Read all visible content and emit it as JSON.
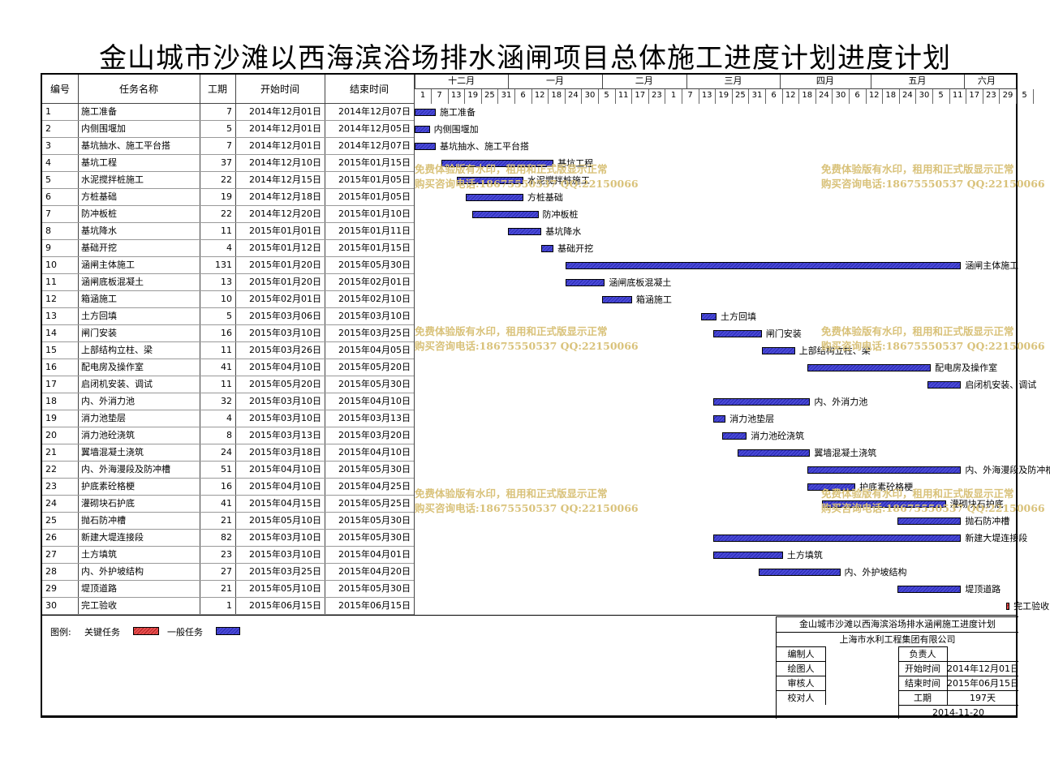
{
  "title": "金山城市沙滩以西海滨浴场排水涵闸项目总体施工进度计划进度计划",
  "headers": {
    "id": "编号",
    "name": "任务名称",
    "dur": "工期",
    "start": "开始时间",
    "end": "结束时间"
  },
  "months": [
    "十二月",
    "一月",
    "二月",
    "三月",
    "四月",
    "五月",
    "六月"
  ],
  "days": [
    "1",
    "7",
    "13",
    "19",
    "25",
    "31",
    "6",
    "12",
    "18",
    "24",
    "30",
    "5",
    "11",
    "17",
    "23",
    "1",
    "7",
    "13",
    "19",
    "25",
    "31",
    "6",
    "12",
    "18",
    "24",
    "30",
    "6",
    "12",
    "18",
    "24",
    "30",
    "5",
    "11",
    "17",
    "23",
    "29",
    "5"
  ],
  "tasks": [
    {
      "id": "1",
      "name": "施工准备",
      "dur": "7",
      "start": "2014年12月01日",
      "end": "2014年12月07日"
    },
    {
      "id": "2",
      "name": "内侧围堰加",
      "dur": "5",
      "start": "2014年12月01日",
      "end": "2014年12月05日"
    },
    {
      "id": "3",
      "name": "基坑抽水、施工平台搭",
      "dur": "7",
      "start": "2014年12月01日",
      "end": "2014年12月07日"
    },
    {
      "id": "4",
      "name": "基坑工程",
      "dur": "37",
      "start": "2014年12月10日",
      "end": "2015年01月15日"
    },
    {
      "id": "5",
      "name": "水泥搅拌桩施工",
      "dur": "22",
      "start": "2014年12月15日",
      "end": "2015年01月05日"
    },
    {
      "id": "6",
      "name": "方桩基础",
      "dur": "19",
      "start": "2014年12月18日",
      "end": "2015年01月05日"
    },
    {
      "id": "7",
      "name": "防冲板桩",
      "dur": "22",
      "start": "2014年12月20日",
      "end": "2015年01月10日"
    },
    {
      "id": "8",
      "name": "基坑降水",
      "dur": "11",
      "start": "2015年01月01日",
      "end": "2015年01月11日"
    },
    {
      "id": "9",
      "name": "基础开挖",
      "dur": "4",
      "start": "2015年01月12日",
      "end": "2015年01月15日"
    },
    {
      "id": "10",
      "name": "涵闸主体施工",
      "dur": "131",
      "start": "2015年01月20日",
      "end": "2015年05月30日"
    },
    {
      "id": "11",
      "name": "涵闸底板混凝土",
      "dur": "13",
      "start": "2015年01月20日",
      "end": "2015年02月01日"
    },
    {
      "id": "12",
      "name": "箱涵施工",
      "dur": "10",
      "start": "2015年02月01日",
      "end": "2015年02月10日"
    },
    {
      "id": "13",
      "name": "土方回填",
      "dur": "5",
      "start": "2015年03月06日",
      "end": "2015年03月10日"
    },
    {
      "id": "14",
      "name": "闸门安装",
      "dur": "16",
      "start": "2015年03月10日",
      "end": "2015年03月25日"
    },
    {
      "id": "15",
      "name": "上部结构立柱、梁",
      "dur": "11",
      "start": "2015年03月26日",
      "end": "2015年04月05日"
    },
    {
      "id": "16",
      "name": "配电房及操作室",
      "dur": "41",
      "start": "2015年04月10日",
      "end": "2015年05月20日"
    },
    {
      "id": "17",
      "name": "启闭机安装、调试",
      "dur": "11",
      "start": "2015年05月20日",
      "end": "2015年05月30日"
    },
    {
      "id": "18",
      "name": "内、外消力池",
      "dur": "32",
      "start": "2015年03月10日",
      "end": "2015年04月10日"
    },
    {
      "id": "19",
      "name": "消力池垫层",
      "dur": "4",
      "start": "2015年03月10日",
      "end": "2015年03月13日"
    },
    {
      "id": "20",
      "name": "消力池砼浇筑",
      "dur": "8",
      "start": "2015年03月13日",
      "end": "2015年03月20日"
    },
    {
      "id": "21",
      "name": "翼墙混凝土浇筑",
      "dur": "24",
      "start": "2015年03月18日",
      "end": "2015年04月10日"
    },
    {
      "id": "22",
      "name": "内、外海漫段及防冲槽",
      "dur": "51",
      "start": "2015年04月10日",
      "end": "2015年05月30日"
    },
    {
      "id": "23",
      "name": "护底素砼格梗",
      "dur": "16",
      "start": "2015年04月10日",
      "end": "2015年04月25日"
    },
    {
      "id": "24",
      "name": "灌砌块石护底",
      "dur": "41",
      "start": "2015年04月15日",
      "end": "2015年05月25日"
    },
    {
      "id": "25",
      "name": "抛石防冲槽",
      "dur": "21",
      "start": "2015年05月10日",
      "end": "2015年05月30日"
    },
    {
      "id": "26",
      "name": "新建大堤连接段",
      "dur": "82",
      "start": "2015年03月10日",
      "end": "2015年05月30日"
    },
    {
      "id": "27",
      "name": "土方填筑",
      "dur": "23",
      "start": "2015年03月10日",
      "end": "2015年04月01日"
    },
    {
      "id": "28",
      "name": "内、外护坡结构",
      "dur": "27",
      "start": "2015年03月25日",
      "end": "2015年04月20日"
    },
    {
      "id": "29",
      "name": "堤顶道路",
      "dur": "21",
      "start": "2015年05月10日",
      "end": "2015年05月30日"
    },
    {
      "id": "30",
      "name": "完工验收",
      "dur": "1",
      "start": "2015年06月15日",
      "end": "2015年06月15日"
    }
  ],
  "bars": [
    {
      "s": 0,
      "e": 7,
      "crit": false
    },
    {
      "s": 0,
      "e": 5,
      "crit": false
    },
    {
      "s": 0,
      "e": 7,
      "crit": false
    },
    {
      "s": 9,
      "e": 46,
      "crit": false
    },
    {
      "s": 14,
      "e": 36,
      "crit": false
    },
    {
      "s": 17,
      "e": 36,
      "crit": false
    },
    {
      "s": 19,
      "e": 41,
      "crit": false
    },
    {
      "s": 31,
      "e": 42,
      "crit": false
    },
    {
      "s": 42,
      "e": 46,
      "crit": false
    },
    {
      "s": 50,
      "e": 181,
      "crit": false
    },
    {
      "s": 50,
      "e": 63,
      "crit": false
    },
    {
      "s": 62,
      "e": 72,
      "crit": false
    },
    {
      "s": 95,
      "e": 100,
      "crit": false
    },
    {
      "s": 99,
      "e": 115,
      "crit": false
    },
    {
      "s": 115,
      "e": 126,
      "crit": false
    },
    {
      "s": 130,
      "e": 171,
      "crit": false
    },
    {
      "s": 170,
      "e": 181,
      "crit": false
    },
    {
      "s": 99,
      "e": 131,
      "crit": false
    },
    {
      "s": 99,
      "e": 103,
      "crit": false
    },
    {
      "s": 102,
      "e": 110,
      "crit": false
    },
    {
      "s": 107,
      "e": 131,
      "crit": false
    },
    {
      "s": 130,
      "e": 181,
      "crit": false
    },
    {
      "s": 130,
      "e": 146,
      "crit": false
    },
    {
      "s": 135,
      "e": 176,
      "crit": false
    },
    {
      "s": 160,
      "e": 181,
      "crit": false
    },
    {
      "s": 99,
      "e": 181,
      "crit": false
    },
    {
      "s": 99,
      "e": 122,
      "crit": false
    },
    {
      "s": 114,
      "e": 141,
      "crit": false
    },
    {
      "s": 160,
      "e": 181,
      "crit": false
    },
    {
      "s": 196,
      "e": 197,
      "crit": true
    }
  ],
  "watermark": {
    "line1": "免费体验版有水印，租用和正式版显示正常",
    "line2": "购买咨询电话:18675550537 QQ:22150066"
  },
  "legend": {
    "label": "图例:",
    "critical": "关键任务",
    "normal": "一般任务"
  },
  "titleblock": {
    "project": "金山城市沙滩以西海滨浴场排水涵闸施工进度计划",
    "company": "上海市水利工程集团有限公司",
    "compiler": "编制人",
    "owner": "负责人",
    "drawer": "绘图人",
    "start_label": "开始时间",
    "start_value": "2014年12月01日",
    "reviewer": "审核人",
    "end_label": "结束时间",
    "end_value": "2015年06月15日",
    "checker": "校对人",
    "dur_label": "工期",
    "dur_value": "197天",
    "date": "2014-11-20"
  },
  "colors": {
    "normal_bar": "#3a3ac8",
    "critical_bar": "#d03030",
    "watermark": "#d9c27a"
  }
}
